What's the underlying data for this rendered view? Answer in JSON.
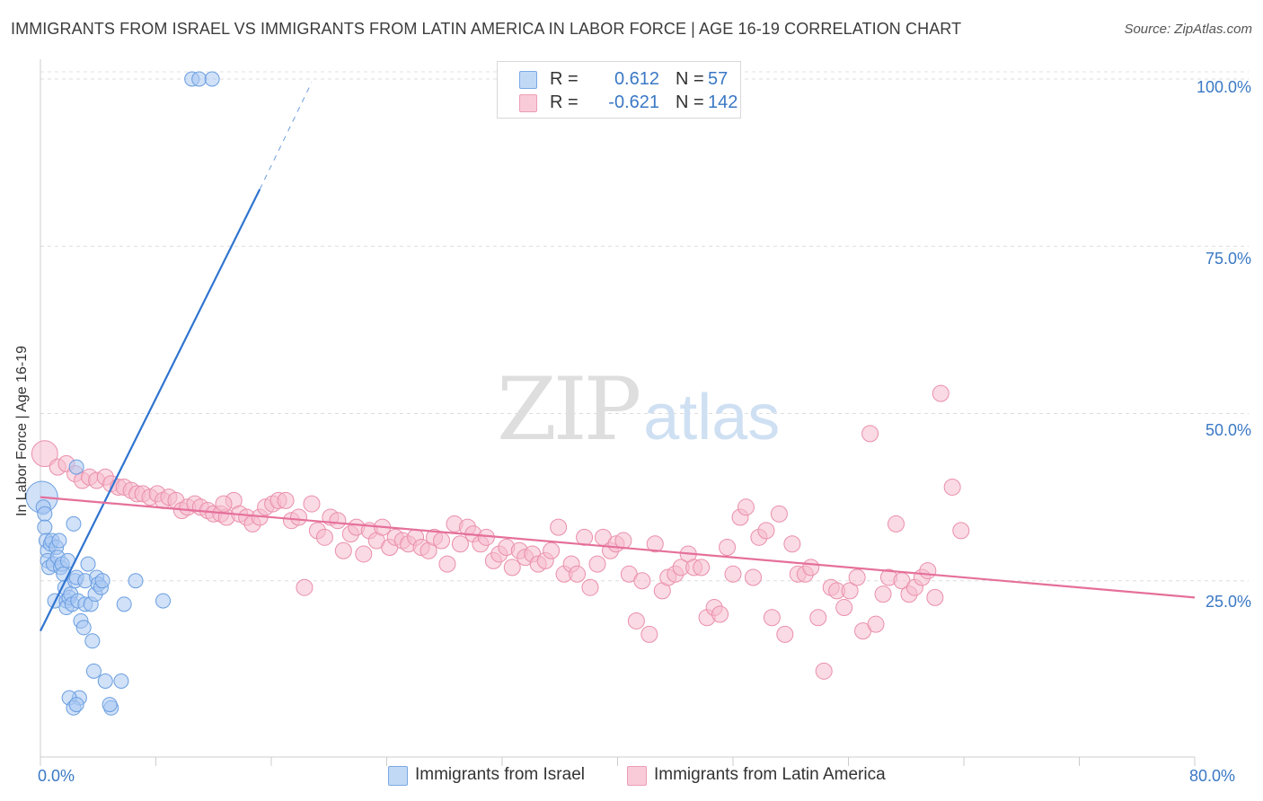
{
  "title": "IMMIGRANTS FROM ISRAEL VS IMMIGRANTS FROM LATIN AMERICA IN LABOR FORCE | AGE 16-19 CORRELATION CHART",
  "source": "Source: ZipAtlas.com",
  "watermark": {
    "zip": "ZIP",
    "atlas": "atlas"
  },
  "legend": {
    "r_label": "R =",
    "n_label": "N =",
    "israel": {
      "r": "0.612",
      "n": "57"
    },
    "latin": {
      "r": "-0.621",
      "n": "142"
    }
  },
  "colors": {
    "israel_fill": "#a9c9f2",
    "israel_stroke": "#6a9ee0",
    "israel_line": "#2f74d0",
    "latin_fill": "#f6bccd",
    "latin_stroke": "#ea8fab",
    "latin_line": "#e5709a",
    "tick_text": "#3a78c4"
  },
  "chart_data": {
    "type": "scatter",
    "title": "IMMIGRANTS FROM ISRAEL VS IMMIGRANTS FROM LATIN AMERICA IN LABOR FORCE | AGE 16-19 CORRELATION CHART",
    "xlabel": "",
    "ylabel": "In Labor Force | Age 16-19",
    "xlim": [
      0,
      80
    ],
    "ylim": [
      0,
      102
    ],
    "x_ticks": [
      "0.0%",
      "80.0%"
    ],
    "y_ticks": [
      {
        "value": 25,
        "label": "25.0%"
      },
      {
        "value": 50,
        "label": "50.0%"
      },
      {
        "value": 75,
        "label": "75.0%"
      },
      {
        "value": 100,
        "label": "100.0%"
      }
    ],
    "grid": true,
    "legend_position": "top-center",
    "series": [
      {
        "name": "Immigrants from Israel",
        "r": 0.612,
        "n": 57,
        "trend": {
          "x0": 0,
          "y0": 17.5,
          "x1": 15.2,
          "y1": 83.5,
          "dashed_to_x": 18.8,
          "dashed_to_y": 99.5
        },
        "points": [
          {
            "x": 0.1,
            "y": 37.5,
            "s": 2.2
          },
          {
            "x": 0.2,
            "y": 36
          },
          {
            "x": 0.3,
            "y": 35
          },
          {
            "x": 0.3,
            "y": 33
          },
          {
            "x": 0.4,
            "y": 31
          },
          {
            "x": 0.5,
            "y": 29.5
          },
          {
            "x": 0.5,
            "y": 28
          },
          {
            "x": 0.6,
            "y": 27
          },
          {
            "x": 0.7,
            "y": 30.5
          },
          {
            "x": 0.8,
            "y": 31
          },
          {
            "x": 0.9,
            "y": 27.5
          },
          {
            "x": 1.0,
            "y": 22
          },
          {
            "x": 1.1,
            "y": 30
          },
          {
            "x": 1.2,
            "y": 28.5
          },
          {
            "x": 1.3,
            "y": 31
          },
          {
            "x": 1.4,
            "y": 27
          },
          {
            "x": 1.5,
            "y": 27.5
          },
          {
            "x": 1.6,
            "y": 26
          },
          {
            "x": 1.7,
            "y": 24
          },
          {
            "x": 1.8,
            "y": 22
          },
          {
            "x": 1.8,
            "y": 21
          },
          {
            "x": 1.9,
            "y": 28
          },
          {
            "x": 2.0,
            "y": 22.5
          },
          {
            "x": 2.1,
            "y": 23
          },
          {
            "x": 2.2,
            "y": 21.5
          },
          {
            "x": 2.3,
            "y": 33.5
          },
          {
            "x": 2.4,
            "y": 25
          },
          {
            "x": 2.5,
            "y": 25.5
          },
          {
            "x": 2.6,
            "y": 22
          },
          {
            "x": 2.8,
            "y": 19
          },
          {
            "x": 2.5,
            "y": 42
          },
          {
            "x": 2.7,
            "y": 7.5
          },
          {
            "x": 2.0,
            "y": 7.5
          },
          {
            "x": 2.3,
            "y": 6
          },
          {
            "x": 2.5,
            "y": 6.5
          },
          {
            "x": 3.0,
            "y": 18
          },
          {
            "x": 3.1,
            "y": 21.5
          },
          {
            "x": 3.1,
            "y": 25
          },
          {
            "x": 3.3,
            "y": 27.5
          },
          {
            "x": 3.5,
            "y": 21.5
          },
          {
            "x": 3.6,
            "y": 16
          },
          {
            "x": 3.7,
            "y": 11.5
          },
          {
            "x": 3.8,
            "y": 23
          },
          {
            "x": 3.9,
            "y": 25.5
          },
          {
            "x": 4.0,
            "y": 24.5
          },
          {
            "x": 4.2,
            "y": 24
          },
          {
            "x": 4.3,
            "y": 25
          },
          {
            "x": 4.9,
            "y": 6
          },
          {
            "x": 4.5,
            "y": 10
          },
          {
            "x": 5.6,
            "y": 10
          },
          {
            "x": 4.8,
            "y": 6.5
          },
          {
            "x": 5.8,
            "y": 21.5
          },
          {
            "x": 6.6,
            "y": 25
          },
          {
            "x": 8.5,
            "y": 22
          },
          {
            "x": 10.5,
            "y": 100
          },
          {
            "x": 11.0,
            "y": 100
          },
          {
            "x": 11.9,
            "y": 100
          }
        ]
      },
      {
        "name": "Immigrants from Latin America",
        "r": -0.621,
        "n": 142,
        "trend": {
          "x0": 0,
          "y0": 37.5,
          "x1": 80,
          "y1": 22.5
        },
        "points": [
          {
            "x": 0.3,
            "y": 44,
            "s": 1.6
          },
          {
            "x": 1.2,
            "y": 42
          },
          {
            "x": 1.8,
            "y": 42.5
          },
          {
            "x": 2.4,
            "y": 41
          },
          {
            "x": 2.9,
            "y": 40
          },
          {
            "x": 3.4,
            "y": 40.5
          },
          {
            "x": 3.9,
            "y": 40
          },
          {
            "x": 4.5,
            "y": 40.5
          },
          {
            "x": 4.9,
            "y": 39.5
          },
          {
            "x": 5.4,
            "y": 39
          },
          {
            "x": 5.8,
            "y": 39
          },
          {
            "x": 6.3,
            "y": 38.5
          },
          {
            "x": 6.7,
            "y": 38
          },
          {
            "x": 7.1,
            "y": 38
          },
          {
            "x": 7.6,
            "y": 37.5
          },
          {
            "x": 8.1,
            "y": 38
          },
          {
            "x": 8.5,
            "y": 37
          },
          {
            "x": 8.9,
            "y": 37.5
          },
          {
            "x": 9.4,
            "y": 37
          },
          {
            "x": 9.8,
            "y": 35.5
          },
          {
            "x": 10.2,
            "y": 36
          },
          {
            "x": 10.7,
            "y": 36.5
          },
          {
            "x": 11.1,
            "y": 36
          },
          {
            "x": 11.6,
            "y": 35.5
          },
          {
            "x": 12.0,
            "y": 35
          },
          {
            "x": 12.5,
            "y": 35
          },
          {
            "x": 12.9,
            "y": 34.5
          },
          {
            "x": 13.4,
            "y": 37
          },
          {
            "x": 13.8,
            "y": 35
          },
          {
            "x": 14.3,
            "y": 34.5
          },
          {
            "x": 14.7,
            "y": 33.5
          },
          {
            "x": 15.2,
            "y": 34.5
          },
          {
            "x": 15.6,
            "y": 36
          },
          {
            "x": 16.1,
            "y": 36.5
          },
          {
            "x": 16.5,
            "y": 37
          },
          {
            "x": 17.0,
            "y": 37
          },
          {
            "x": 17.4,
            "y": 34
          },
          {
            "x": 17.9,
            "y": 34.5
          },
          {
            "x": 18.3,
            "y": 24
          },
          {
            "x": 18.8,
            "y": 36.5
          },
          {
            "x": 19.2,
            "y": 32.5
          },
          {
            "x": 19.7,
            "y": 31.5
          },
          {
            "x": 20.1,
            "y": 34.5
          },
          {
            "x": 20.6,
            "y": 34
          },
          {
            "x": 21.0,
            "y": 29.5
          },
          {
            "x": 21.5,
            "y": 32
          },
          {
            "x": 21.9,
            "y": 33
          },
          {
            "x": 22.4,
            "y": 29
          },
          {
            "x": 22.8,
            "y": 32.5
          },
          {
            "x": 23.3,
            "y": 31
          },
          {
            "x": 23.7,
            "y": 33
          },
          {
            "x": 24.2,
            "y": 30
          },
          {
            "x": 24.6,
            "y": 31.5
          },
          {
            "x": 25.1,
            "y": 31
          },
          {
            "x": 25.5,
            "y": 30.5
          },
          {
            "x": 26.0,
            "y": 31.5
          },
          {
            "x": 26.4,
            "y": 30
          },
          {
            "x": 26.9,
            "y": 29.5
          },
          {
            "x": 27.3,
            "y": 31.5
          },
          {
            "x": 27.8,
            "y": 31
          },
          {
            "x": 28.2,
            "y": 27.5
          },
          {
            "x": 28.7,
            "y": 33.5
          },
          {
            "x": 29.1,
            "y": 30.5
          },
          {
            "x": 29.6,
            "y": 33
          },
          {
            "x": 30.0,
            "y": 32
          },
          {
            "x": 30.5,
            "y": 30.5
          },
          {
            "x": 30.9,
            "y": 31.5
          },
          {
            "x": 31.4,
            "y": 28
          },
          {
            "x": 31.8,
            "y": 29
          },
          {
            "x": 32.3,
            "y": 30
          },
          {
            "x": 32.7,
            "y": 27
          },
          {
            "x": 33.2,
            "y": 29.5
          },
          {
            "x": 33.6,
            "y": 28.5
          },
          {
            "x": 34.1,
            "y": 29
          },
          {
            "x": 34.5,
            "y": 27.5
          },
          {
            "x": 35.0,
            "y": 28
          },
          {
            "x": 35.4,
            "y": 29.5
          },
          {
            "x": 35.9,
            "y": 33
          },
          {
            "x": 36.3,
            "y": 26
          },
          {
            "x": 36.8,
            "y": 27.5
          },
          {
            "x": 37.2,
            "y": 26
          },
          {
            "x": 37.7,
            "y": 31.5
          },
          {
            "x": 38.1,
            "y": 24
          },
          {
            "x": 38.6,
            "y": 27.5
          },
          {
            "x": 39.0,
            "y": 31.5
          },
          {
            "x": 39.5,
            "y": 29.5
          },
          {
            "x": 39.9,
            "y": 30.5
          },
          {
            "x": 40.4,
            "y": 31
          },
          {
            "x": 40.8,
            "y": 26
          },
          {
            "x": 41.3,
            "y": 19
          },
          {
            "x": 41.7,
            "y": 25
          },
          {
            "x": 42.2,
            "y": 17
          },
          {
            "x": 42.6,
            "y": 30.5
          },
          {
            "x": 43.1,
            "y": 23.5
          },
          {
            "x": 43.5,
            "y": 25.5
          },
          {
            "x": 44.0,
            "y": 26
          },
          {
            "x": 44.4,
            "y": 27
          },
          {
            "x": 44.9,
            "y": 29
          },
          {
            "x": 45.3,
            "y": 27
          },
          {
            "x": 45.8,
            "y": 27
          },
          {
            "x": 46.2,
            "y": 19.5
          },
          {
            "x": 46.7,
            "y": 21
          },
          {
            "x": 47.1,
            "y": 20
          },
          {
            "x": 47.6,
            "y": 30
          },
          {
            "x": 48.0,
            "y": 26
          },
          {
            "x": 48.5,
            "y": 34.5
          },
          {
            "x": 48.9,
            "y": 36
          },
          {
            "x": 49.4,
            "y": 25.5
          },
          {
            "x": 49.8,
            "y": 31.5
          },
          {
            "x": 50.3,
            "y": 32.5
          },
          {
            "x": 50.7,
            "y": 19.5
          },
          {
            "x": 51.2,
            "y": 35
          },
          {
            "x": 51.6,
            "y": 17
          },
          {
            "x": 52.1,
            "y": 30.5
          },
          {
            "x": 52.5,
            "y": 26
          },
          {
            "x": 53.0,
            "y": 26
          },
          {
            "x": 53.4,
            "y": 27
          },
          {
            "x": 53.9,
            "y": 19.5
          },
          {
            "x": 54.3,
            "y": 11.5
          },
          {
            "x": 54.8,
            "y": 24
          },
          {
            "x": 55.2,
            "y": 23.5
          },
          {
            "x": 55.7,
            "y": 21
          },
          {
            "x": 56.1,
            "y": 23.5
          },
          {
            "x": 56.6,
            "y": 25.5
          },
          {
            "x": 57.0,
            "y": 17.5
          },
          {
            "x": 57.5,
            "y": 47
          },
          {
            "x": 57.9,
            "y": 18.5
          },
          {
            "x": 58.4,
            "y": 23
          },
          {
            "x": 58.8,
            "y": 25.5
          },
          {
            "x": 59.3,
            "y": 33.5
          },
          {
            "x": 59.7,
            "y": 25
          },
          {
            "x": 60.2,
            "y": 23
          },
          {
            "x": 60.6,
            "y": 24
          },
          {
            "x": 61.1,
            "y": 25.5
          },
          {
            "x": 61.5,
            "y": 26.5
          },
          {
            "x": 62.0,
            "y": 22.5
          },
          {
            "x": 62.4,
            "y": 53
          },
          {
            "x": 63.2,
            "y": 39
          },
          {
            "x": 63.8,
            "y": 32.5
          },
          {
            "x": 12.7,
            "y": 36.5
          }
        ]
      }
    ]
  },
  "bottom_legend": {
    "israel": "Immigrants from Israel",
    "latin": "Immigrants from Latin America"
  }
}
